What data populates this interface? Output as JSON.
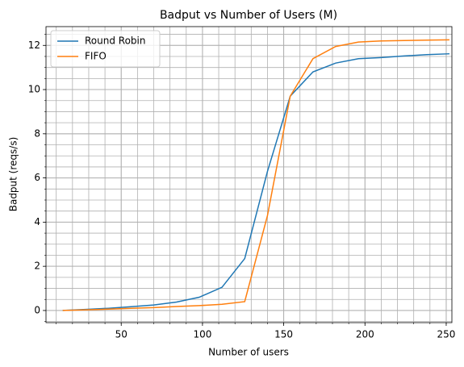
{
  "chart_data": {
    "type": "line",
    "title": "Badput vs Number of Users (M)",
    "x_label": "Number of users",
    "y_label": "Badput (reqs/s)",
    "x": [
      14,
      28,
      42,
      56,
      70,
      84,
      98,
      112,
      126,
      140,
      154,
      168,
      182,
      196,
      210,
      224,
      238,
      252
    ],
    "series": [
      {
        "name": "Round Robin",
        "color": "#1f77b4",
        "values": [
          0.0,
          0.05,
          0.1,
          0.17,
          0.25,
          0.38,
          0.6,
          1.05,
          2.35,
          6.3,
          9.7,
          10.8,
          11.2,
          11.4,
          11.45,
          11.52,
          11.58,
          11.62
        ]
      },
      {
        "name": "FIFO",
        "color": "#ff7f0e",
        "values": [
          0.0,
          0.03,
          0.06,
          0.1,
          0.13,
          0.18,
          0.22,
          0.28,
          0.4,
          4.3,
          9.7,
          11.4,
          11.95,
          12.15,
          12.2,
          12.22,
          12.24,
          12.25
        ]
      }
    ],
    "xlim": [
      3.7,
      253.5
    ],
    "ylim": [
      -0.55,
      12.85
    ],
    "xticks": [
      50,
      100,
      150,
      200,
      250
    ],
    "yticks": [
      0,
      2,
      4,
      6,
      8,
      10,
      12
    ],
    "xminor": [
      10,
      20,
      30,
      40,
      50,
      60,
      70,
      80,
      90,
      100,
      110,
      120,
      130,
      140,
      150,
      160,
      170,
      180,
      190,
      200,
      210,
      220,
      230,
      240,
      250
    ],
    "yminor": [
      -0.5,
      0,
      0.5,
      1,
      1.5,
      2,
      2.5,
      3,
      3.5,
      4,
      4.5,
      5,
      5.5,
      6,
      6.5,
      7,
      7.5,
      8,
      8.5,
      9,
      9.5,
      10,
      10.5,
      11,
      11.5,
      12,
      12.5
    ],
    "grid": true,
    "legend": "upper left"
  }
}
